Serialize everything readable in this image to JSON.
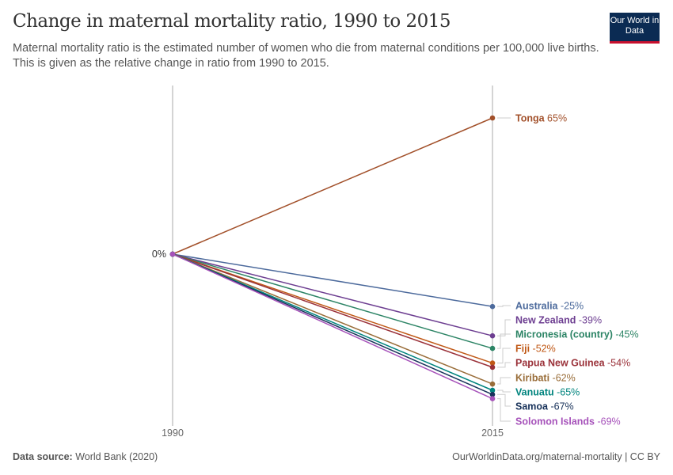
{
  "header": {
    "title": "Change in maternal mortality ratio, 1990 to 2015",
    "subtitle": "Maternal mortality ratio is the estimated number of women who die from maternal conditions per 100,000 live births. This is given as the relative change in ratio from 1990 to 2015.",
    "logo": "Our World in Data"
  },
  "footer": {
    "source_label": "Data source:",
    "source": "World Bank (2020)",
    "url": "OurWorldinData.org/maternal-mortality | CC BY"
  },
  "chart_data": {
    "type": "line",
    "x": [
      "1990",
      "2015"
    ],
    "y_tick_label": "0%",
    "series": [
      {
        "name": "Tonga",
        "values": [
          0,
          65
        ],
        "label": "65%",
        "color": "#a2502a"
      },
      {
        "name": "Australia",
        "values": [
          0,
          -25
        ],
        "label": "-25%",
        "color": "#4c6a9c"
      },
      {
        "name": "New Zealand",
        "values": [
          0,
          -39
        ],
        "label": "-39%",
        "color": "#6d3e91"
      },
      {
        "name": "Micronesia (country)",
        "values": [
          0,
          -45
        ],
        "label": "-45%",
        "color": "#2c8465"
      },
      {
        "name": "Fiji",
        "values": [
          0,
          -52
        ],
        "label": "-52%",
        "color": "#c05917"
      },
      {
        "name": "Papua New Guinea",
        "values": [
          0,
          -54
        ],
        "label": "-54%",
        "color": "#9a3139"
      },
      {
        "name": "Kiribati",
        "values": [
          0,
          -62
        ],
        "label": "-62%",
        "color": "#996d39"
      },
      {
        "name": "Vanuatu",
        "values": [
          0,
          -65
        ],
        "label": "-65%",
        "color": "#00847e"
      },
      {
        "name": "Samoa",
        "values": [
          0,
          -67
        ],
        "label": "-67%",
        "color": "#18325a"
      },
      {
        "name": "Solomon Islands",
        "values": [
          0,
          -69
        ],
        "label": "-69%",
        "color": "#a652ba"
      }
    ]
  }
}
